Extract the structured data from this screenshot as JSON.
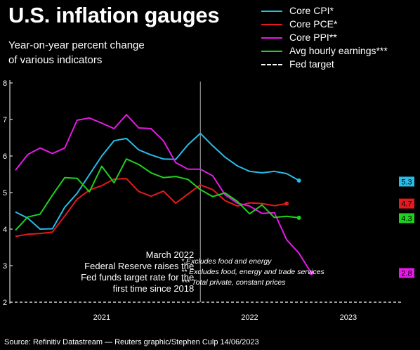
{
  "header": {
    "title": "U.S. inflation gauges",
    "subtitle_line1": "Year-on-year percent change",
    "subtitle_line2": "of various indicators"
  },
  "source": "Source: Refinitiv Datastream — Reuters graphic/Stephen Culp 14/06/2023",
  "annotation": {
    "lines": [
      "March 2022",
      "Federal Reserve raises the",
      "Fed funds target rate for the",
      "first time since 2018"
    ],
    "x": "2022-03"
  },
  "footnotes": [
    "* Excludes food and energy",
    "** Excludes food, energy and trade services",
    "*** Total private, constant prices"
  ],
  "chart_data": {
    "type": "line",
    "title": "U.S. inflation gauges",
    "subtitle": "Year-on-year percent change of various indicators",
    "x": [
      "2020-12",
      "2021-01",
      "2021-02",
      "2021-03",
      "2021-04",
      "2021-05",
      "2021-06",
      "2021-07",
      "2021-08",
      "2021-09",
      "2021-10",
      "2021-11",
      "2021-12",
      "2022-01",
      "2022-02",
      "2022-03",
      "2022-04",
      "2022-05",
      "2022-06",
      "2022-07",
      "2022-08",
      "2022-09",
      "2022-10",
      "2022-11",
      "2022-12",
      "2023-01",
      "2023-02",
      "2023-03",
      "2023-04",
      "2023-05"
    ],
    "x_ticks": [
      {
        "x": "2021-07",
        "label": "2021"
      },
      {
        "x": "2022-07",
        "label": "2022"
      },
      {
        "x": "2023-03",
        "label": "2023"
      }
    ],
    "y_ticks": [
      2,
      3,
      4,
      5,
      6,
      7,
      8
    ],
    "ylim": [
      2,
      8
    ],
    "grid": false,
    "legend_position": "top-right",
    "series": [
      {
        "name": "Core CPI*",
        "color": "#29bce8",
        "end_label": "5.3",
        "x": [
          "2020-12",
          "2021-01",
          "2021-02",
          "2021-03",
          "2021-04",
          "2021-05",
          "2021-06",
          "2021-07",
          "2021-08",
          "2021-09",
          "2021-10",
          "2021-11",
          "2021-12",
          "2022-01",
          "2022-02",
          "2022-03",
          "2022-04",
          "2022-05",
          "2022-06",
          "2022-07",
          "2022-08",
          "2022-09",
          "2022-10",
          "2022-11",
          "2022-12",
          "2023-01",
          "2023-02",
          "2023-03",
          "2023-04",
          "2023-05"
        ],
        "values": [
          4.47,
          4.3,
          4.0,
          4.01,
          4.6,
          4.98,
          5.49,
          6.0,
          6.42,
          6.48,
          6.17,
          6.03,
          5.92,
          5.91,
          6.31,
          6.62,
          6.28,
          5.97,
          5.73,
          5.58,
          5.54,
          5.58,
          5.52,
          5.33,
          null,
          null,
          null,
          null,
          null,
          null
        ]
      },
      {
        "name": "Core PCE*",
        "color": "#e6191e",
        "end_label": "4.7",
        "x": [
          "2020-12",
          "2021-01",
          "2021-02",
          "2021-03",
          "2021-04",
          "2021-05",
          "2021-06",
          "2021-07",
          "2021-08",
          "2021-09",
          "2021-10",
          "2021-11",
          "2021-12",
          "2022-01",
          "2022-02",
          "2022-03",
          "2022-04",
          "2022-05",
          "2022-06",
          "2022-07",
          "2022-08",
          "2022-09",
          "2022-10",
          "2022-11",
          "2022-12",
          "2023-01",
          "2023-02",
          "2023-03",
          "2023-04",
          "2023-05"
        ],
        "values": [
          3.8,
          3.86,
          3.88,
          3.92,
          4.36,
          4.82,
          5.07,
          5.19,
          5.37,
          5.38,
          5.03,
          4.9,
          5.04,
          4.71,
          4.96,
          5.21,
          5.08,
          4.78,
          4.63,
          4.72,
          4.7,
          4.64,
          4.7,
          null,
          null,
          null,
          null,
          null,
          null,
          null
        ]
      },
      {
        "name": "Core PPI**",
        "color": "#e619e6",
        "end_label": "2.8",
        "x": [
          "2020-12",
          "2021-01",
          "2021-02",
          "2021-03",
          "2021-04",
          "2021-05",
          "2021-06",
          "2021-07",
          "2021-08",
          "2021-09",
          "2021-10",
          "2021-11",
          "2021-12",
          "2022-01",
          "2022-02",
          "2022-03",
          "2022-04",
          "2022-05",
          "2022-06",
          "2022-07",
          "2022-08",
          "2022-09",
          "2022-10",
          "2022-11",
          "2022-12",
          "2023-01",
          "2023-02",
          "2023-03",
          "2023-04",
          "2023-05"
        ],
        "values": [
          5.61,
          6.04,
          6.22,
          6.07,
          6.22,
          6.98,
          7.04,
          6.9,
          6.75,
          7.13,
          6.77,
          6.75,
          6.42,
          5.82,
          5.64,
          5.64,
          5.46,
          4.94,
          4.71,
          4.63,
          4.43,
          4.45,
          3.71,
          3.34,
          2.8,
          null,
          null,
          null,
          null,
          null
        ]
      },
      {
        "name": "Avg hourly earnings***",
        "color": "#1ed21e",
        "end_label": "4.3",
        "x": [
          "2020-12",
          "2021-01",
          "2021-02",
          "2021-03",
          "2021-04",
          "2021-05",
          "2021-06",
          "2021-07",
          "2021-08",
          "2021-09",
          "2021-10",
          "2021-11",
          "2021-12",
          "2022-01",
          "2022-02",
          "2022-03",
          "2022-04",
          "2022-05",
          "2022-06",
          "2022-07",
          "2022-08",
          "2022-09",
          "2022-10",
          "2022-11",
          "2022-12",
          "2023-01",
          "2023-02",
          "2023-03",
          "2023-04",
          "2023-05"
        ],
        "values": [
          3.97,
          4.33,
          4.41,
          4.93,
          5.41,
          5.39,
          5.02,
          5.72,
          5.27,
          5.92,
          5.77,
          5.54,
          5.41,
          5.44,
          5.36,
          5.08,
          4.89,
          4.99,
          4.76,
          4.42,
          4.66,
          4.32,
          4.35,
          4.31,
          null,
          null,
          null,
          null,
          null,
          null
        ]
      },
      {
        "name": "Fed target",
        "color": "#ffffff",
        "dashed": true,
        "constant": 2
      }
    ]
  }
}
